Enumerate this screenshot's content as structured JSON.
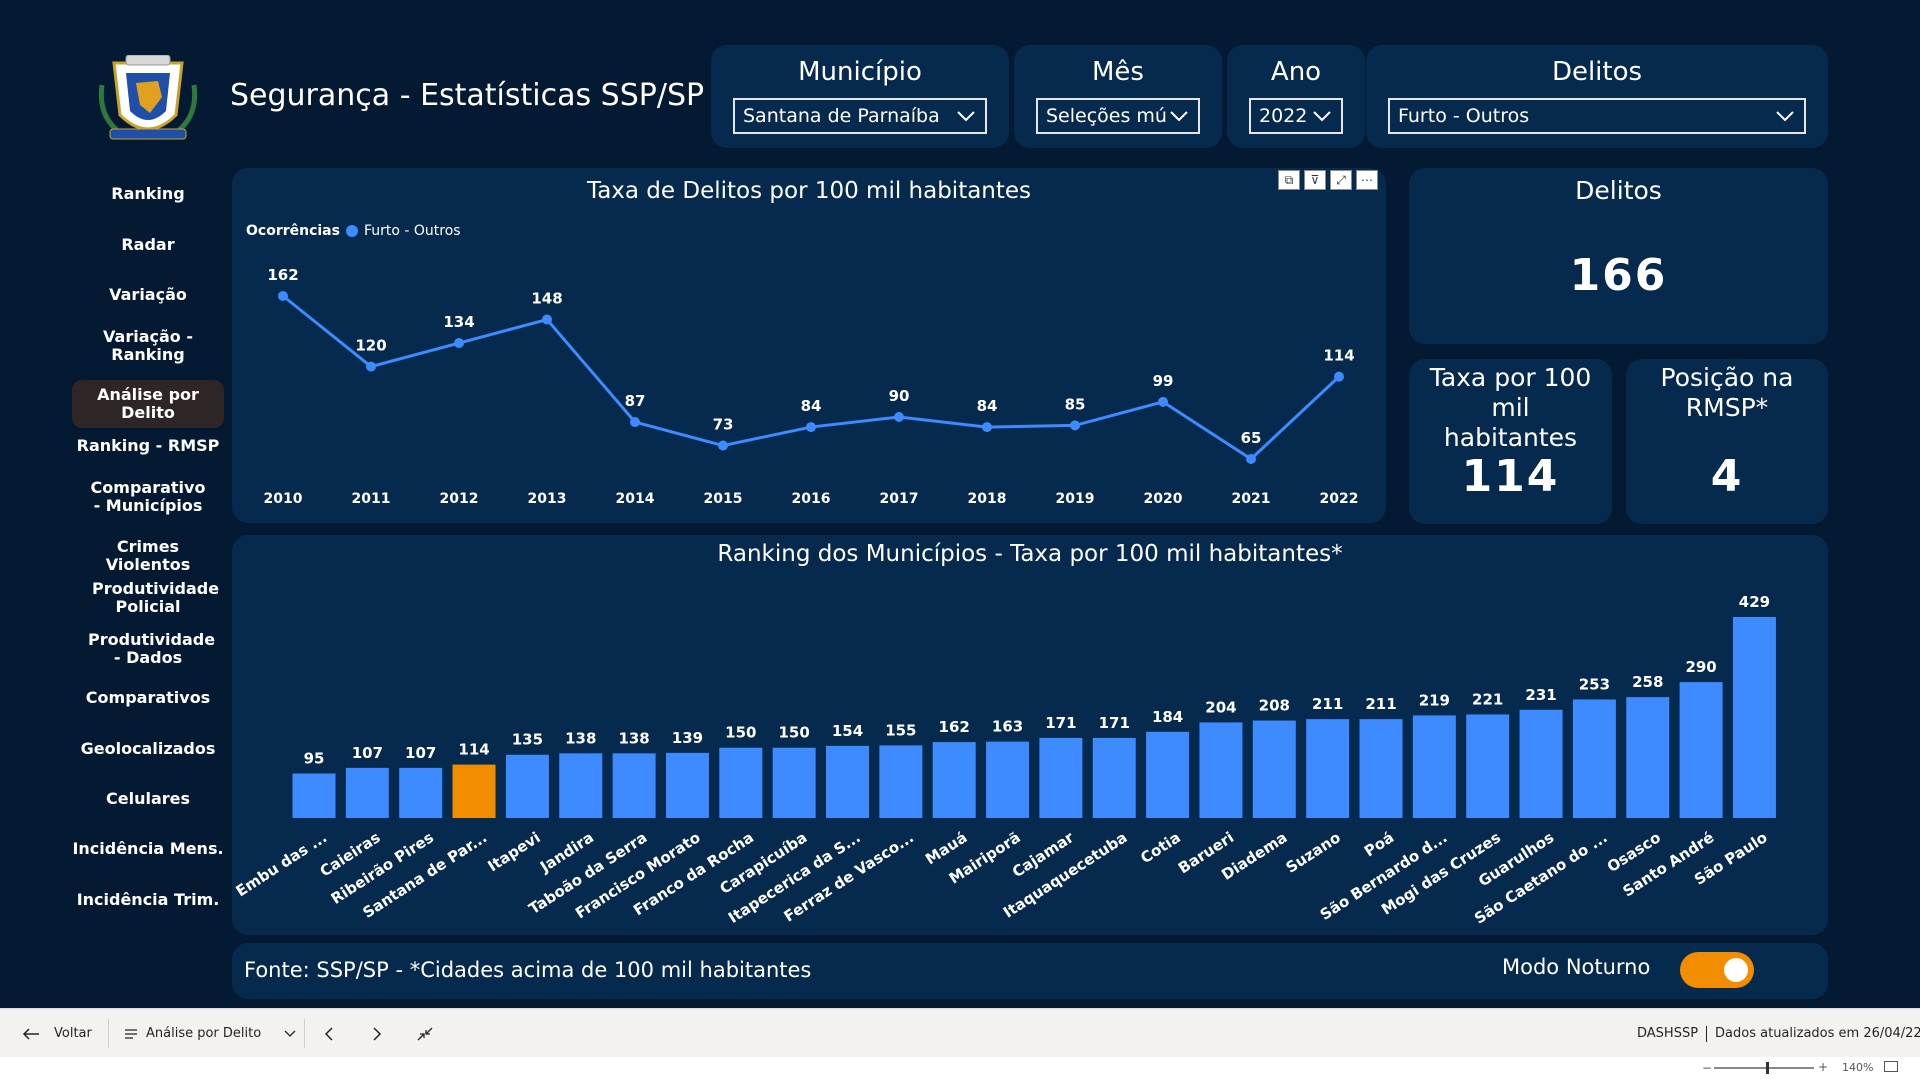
{
  "header": {
    "title": "Segurança - Estatísticas SSP/SP"
  },
  "filters": {
    "municipio": {
      "label": "Município",
      "value": "Santana de Parnaíba"
    },
    "mes": {
      "label": "Mês",
      "value": "Seleções múl..."
    },
    "ano": {
      "label": "Ano",
      "value": "2022"
    },
    "delitos": {
      "label": "Delitos",
      "value": "Furto - Outros"
    }
  },
  "sidebar": {
    "items": [
      {
        "label": "Ranking"
      },
      {
        "label": "Radar"
      },
      {
        "label": "Variação"
      },
      {
        "label": "Variação - Ranking"
      },
      {
        "label": "Análise por Delito"
      },
      {
        "label": "Ranking - RMSP"
      },
      {
        "label": "Comparativo - Municípios"
      },
      {
        "label": "Crimes Violentos"
      },
      {
        "label": "Produtividade Policial"
      },
      {
        "label": "Produtividade - Dados"
      },
      {
        "label": "Comparativos"
      },
      {
        "label": "Geolocalizados"
      },
      {
        "label": "Celulares"
      },
      {
        "label": "Incidência Mens."
      },
      {
        "label": "Incidência Trim."
      }
    ],
    "active_index": 4
  },
  "kpis": {
    "delitos": {
      "label": "Delitos",
      "value": "166"
    },
    "taxa": {
      "label": "Taxa por 100 mil habitantes",
      "value": "114"
    },
    "posicao": {
      "label": "Posição na RMSP*",
      "value": "4"
    }
  },
  "chart_data": [
    {
      "type": "line",
      "title": "Taxa de Delitos por 100 mil habitantes",
      "legend_title": "Ocorrências",
      "legend_position": "top-left",
      "series": [
        {
          "name": "Furto - Outros",
          "color": "#3d8bff",
          "values": [
            162,
            120,
            134,
            148,
            87,
            73,
            84,
            90,
            84,
            85,
            99,
            65,
            114
          ]
        }
      ],
      "x": [
        "2010",
        "2011",
        "2012",
        "2013",
        "2014",
        "2015",
        "2016",
        "2017",
        "2018",
        "2019",
        "2020",
        "2021",
        "2022"
      ],
      "grid": false
    },
    {
      "type": "bar",
      "title": "Ranking dos Municípios - Taxa por 100 mil habitantes*",
      "categories": [
        "Embu das ...",
        "Caieiras",
        "Ribeirão Pires",
        "Santana de Par...",
        "Itapevi",
        "Jandira",
        "Taboão da Serra",
        "Francisco Morato",
        "Franco da Rocha",
        "Carapicuíba",
        "Itapecerica da S...",
        "Ferraz de Vasco...",
        "Mauá",
        "Mairiporã",
        "Cajamar",
        "Itaquaquecetuba",
        "Cotia",
        "Barueri",
        "Diadema",
        "Suzano",
        "Poá",
        "São Bernardo d...",
        "Mogi das Cruzes",
        "Guarulhos",
        "São Caetano do ...",
        "Osasco",
        "Santo André",
        "São Paulo"
      ],
      "values": [
        95,
        107,
        107,
        114,
        135,
        138,
        138,
        139,
        150,
        150,
        154,
        155,
        162,
        163,
        171,
        171,
        184,
        204,
        208,
        211,
        211,
        219,
        221,
        231,
        253,
        258,
        290,
        429
      ],
      "highlight_index": 3,
      "colors": {
        "default": "#3d8bff",
        "highlight": "#f28c00"
      },
      "grid": false
    }
  ],
  "footer": {
    "source": "Fonte: SSP/SP - *Cidades acima de 100 mil habitantes",
    "night_mode_label": "Modo Noturno",
    "night_mode_on": true
  },
  "bottom_bar": {
    "back_label": "Voltar",
    "page_label": "Análise por Delito",
    "report_name": "DASHSSP",
    "updated": "Dados atualizados em 26/04/22",
    "zoom": "140%"
  }
}
